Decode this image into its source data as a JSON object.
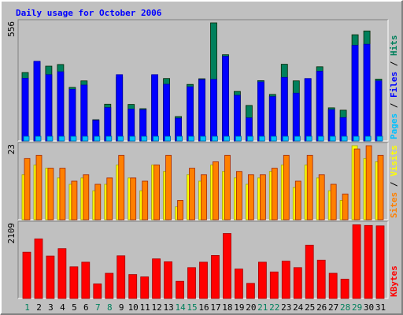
{
  "chart_data": {
    "type": "bar",
    "title": "Daily usage for October 2006",
    "colors": {
      "background": "#c0c0c0",
      "title": "#0000ff",
      "hits": "#00805c",
      "files": "#0000ff",
      "pages": "#00c0ff",
      "visits": "#ffff00",
      "sites": "#ff8000",
      "kbytes": "#ff0000",
      "weekday_label": "#000000",
      "weekend_label": "#00805c"
    },
    "days": [
      "1",
      "2",
      "3",
      "4",
      "5",
      "6",
      "7",
      "8",
      "9",
      "10",
      "11",
      "12",
      "13",
      "14",
      "15",
      "16",
      "17",
      "18",
      "19",
      "20",
      "21",
      "22",
      "23",
      "24",
      "25",
      "26",
      "27",
      "28",
      "29",
      "30",
      "31"
    ],
    "weekend_days": [
      "1",
      "7",
      "8",
      "14",
      "15",
      "21",
      "22",
      "28",
      "29"
    ],
    "panels": [
      {
        "id": "top",
        "ymax_label": "556",
        "ylim": [
          0,
          556
        ],
        "legend": [
          "Pages",
          "Files",
          "Hits"
        ],
        "series": [
          {
            "name": "Hits",
            "values": [
              322,
              372,
              352,
              360,
              252,
              283,
              100,
              173,
              300,
              172,
              152,
              308,
              294,
              115,
              266,
              293,
              556,
              406,
              233,
              167,
              284,
              219,
              361,
              283,
              292,
              349,
              156,
              145,
              500,
              518,
              291
            ]
          },
          {
            "name": "Files",
            "values": [
              295,
              375,
              312,
              326,
              243,
              263,
              97,
              157,
              312,
              150,
              147,
              312,
              267,
              107,
              255,
              289,
              290,
              398,
              215,
              109,
              278,
              209,
              299,
              225,
              294,
              328,
              147,
              110,
              450,
              455,
              283
            ]
          },
          {
            "name": "Pages",
            "values": [
              22,
              22,
              22,
              22,
              22,
              22,
              22,
              22,
              22,
              22,
              22,
              22,
              22,
              22,
              22,
              22,
              22,
              22,
              22,
              22,
              22,
              22,
              22,
              22,
              22,
              22,
              22,
              22,
              22,
              22,
              22
            ]
          }
        ]
      },
      {
        "id": "middle",
        "ymax_label": "23",
        "ylim": [
          0,
          23
        ],
        "legend": [
          "Sites",
          "Visits"
        ],
        "series": [
          {
            "name": "Visits",
            "values": [
              14,
              17,
              16,
              13,
              11,
              13,
              9,
              11,
              17,
              13,
              9,
              17,
              15,
              4,
              14,
              12,
              17,
              15,
              13,
              11,
              13,
              15,
              17,
              10,
              17,
              13,
              9,
              6,
              23,
              19,
              18
            ]
          },
          {
            "name": "Sites",
            "values": [
              19,
              20,
              16,
              16,
              12,
              14,
              11,
              13,
              20,
              13,
              12,
              17,
              20,
              6,
              16,
              14,
              18,
              20,
              15,
              14,
              14,
              16,
              20,
              12,
              20,
              14,
              11,
              8,
              22,
              23,
              20
            ]
          }
        ]
      },
      {
        "id": "bottom",
        "ymax_label": "2109",
        "ylim": [
          0,
          2109
        ],
        "legend": [
          "KBytes"
        ],
        "series": [
          {
            "name": "KBytes",
            "values": [
              1320,
              1698,
              1210,
              1420,
              902,
              1034,
              415,
              719,
              1217,
              682,
              615,
              1128,
              1045,
              488,
              880,
              1035,
              1225,
              1852,
              840,
              431,
              1034,
              756,
              1064,
              880,
              1520,
              1092,
              719,
              550,
              2100,
              2080,
              2068
            ]
          }
        ]
      }
    ]
  }
}
